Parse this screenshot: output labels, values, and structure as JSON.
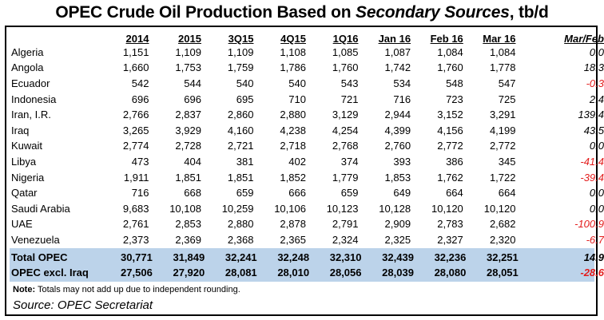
{
  "chart_data": {
    "type": "table",
    "title_main": "OPEC Crude Oil Production Based on ",
    "title_em": "Secondary Sources",
    "title_tail": ", tb/d",
    "columns": [
      "2014",
      "2015",
      "3Q15",
      "4Q15",
      "1Q16",
      "Jan 16",
      "Feb 16",
      "Mar 16",
      "Mar/Feb"
    ],
    "rows": [
      {
        "country": "Algeria",
        "values": [
          "1,151",
          "1,109",
          "1,109",
          "1,108",
          "1,085",
          "1,087",
          "1,084",
          "1,084"
        ],
        "change": "0.0"
      },
      {
        "country": "Angola",
        "values": [
          "1,660",
          "1,753",
          "1,759",
          "1,786",
          "1,760",
          "1,742",
          "1,760",
          "1,778"
        ],
        "change": "18.3"
      },
      {
        "country": "Ecuador",
        "values": [
          "542",
          "544",
          "540",
          "540",
          "543",
          "534",
          "548",
          "547"
        ],
        "change": "-0.3"
      },
      {
        "country": "Indonesia",
        "values": [
          "696",
          "696",
          "695",
          "710",
          "721",
          "716",
          "723",
          "725"
        ],
        "change": "2.4"
      },
      {
        "country": "Iran, I.R.",
        "values": [
          "2,766",
          "2,837",
          "2,860",
          "2,880",
          "3,129",
          "2,944",
          "3,152",
          "3,291"
        ],
        "change": "139.4"
      },
      {
        "country": "Iraq",
        "values": [
          "3,265",
          "3,929",
          "4,160",
          "4,238",
          "4,254",
          "4,399",
          "4,156",
          "4,199"
        ],
        "change": "43.5"
      },
      {
        "country": "Kuwait",
        "values": [
          "2,774",
          "2,728",
          "2,721",
          "2,718",
          "2,768",
          "2,760",
          "2,772",
          "2,772"
        ],
        "change": "0.0"
      },
      {
        "country": "Libya",
        "values": [
          "473",
          "404",
          "381",
          "402",
          "374",
          "393",
          "386",
          "345"
        ],
        "change": "-41.4"
      },
      {
        "country": "Nigeria",
        "values": [
          "1,911",
          "1,851",
          "1,851",
          "1,852",
          "1,779",
          "1,853",
          "1,762",
          "1,722"
        ],
        "change": "-39.4"
      },
      {
        "country": "Qatar",
        "values": [
          "716",
          "668",
          "659",
          "666",
          "659",
          "649",
          "664",
          "664"
        ],
        "change": "0.0"
      },
      {
        "country": "Saudi Arabia",
        "values": [
          "9,683",
          "10,108",
          "10,259",
          "10,106",
          "10,123",
          "10,128",
          "10,120",
          "10,120"
        ],
        "change": "0.0"
      },
      {
        "country": "UAE",
        "values": [
          "2,761",
          "2,853",
          "2,880",
          "2,878",
          "2,791",
          "2,909",
          "2,783",
          "2,682"
        ],
        "change": "-100.9"
      },
      {
        "country": "Venezuela",
        "values": [
          "2,373",
          "2,369",
          "2,368",
          "2,365",
          "2,324",
          "2,325",
          "2,327",
          "2,320"
        ],
        "change": "-6.7"
      }
    ],
    "totals": [
      {
        "label": "Total  OPEC",
        "values": [
          "30,771",
          "31,849",
          "32,241",
          "32,248",
          "32,310",
          "32,439",
          "32,236",
          "32,251"
        ],
        "change": "14.9"
      },
      {
        "label": "OPEC excl. Iraq",
        "values": [
          "27,506",
          "27,920",
          "28,081",
          "28,010",
          "28,056",
          "28,039",
          "28,080",
          "28,051"
        ],
        "change": "-28.6"
      }
    ],
    "note_label": "Note:",
    "note_text": " Totals may not add up due to independent rounding.",
    "source": "Source: OPEC Secretariat"
  },
  "colors": {
    "negative": "#e31c1c",
    "totals_band": "#bcd3ea"
  }
}
